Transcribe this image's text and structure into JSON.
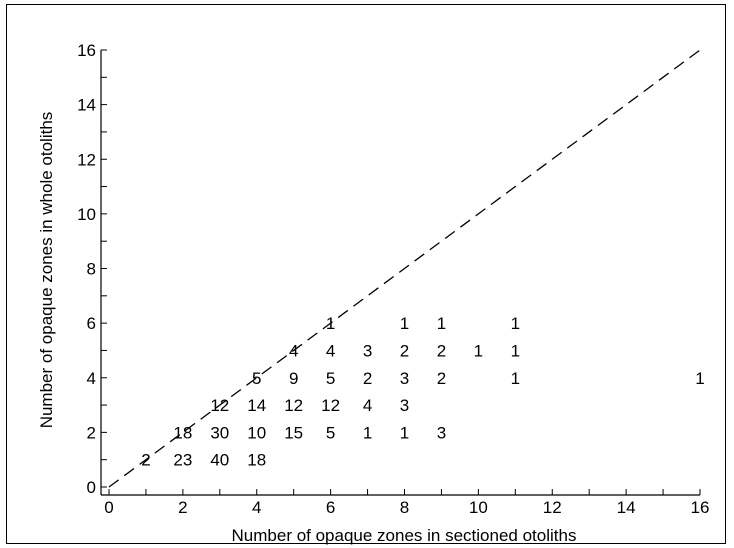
{
  "chart_data": {
    "type": "scatter",
    "title": "",
    "xlabel": "Number of opaque zones in sectioned otoliths",
    "ylabel": "Number of opaque zones in whole otoliths",
    "xlim": [
      0,
      16
    ],
    "ylim": [
      0,
      16
    ],
    "x_tick_labels": [
      "0",
      "2",
      "4",
      "6",
      "8",
      "10",
      "12",
      "14",
      "16"
    ],
    "y_tick_labels": [
      "0",
      "2",
      "4",
      "6",
      "8",
      "10",
      "12",
      "14",
      "16"
    ],
    "reference_line": {
      "style": "dashed",
      "from": [
        0,
        0
      ],
      "to": [
        16,
        16
      ]
    },
    "grid": false,
    "points": [
      {
        "x": 1,
        "y": 1,
        "count": 2
      },
      {
        "x": 2,
        "y": 1,
        "count": 23
      },
      {
        "x": 3,
        "y": 1,
        "count": 40
      },
      {
        "x": 4,
        "y": 1,
        "count": 18
      },
      {
        "x": 2,
        "y": 2,
        "count": 18
      },
      {
        "x": 3,
        "y": 2,
        "count": 30
      },
      {
        "x": 4,
        "y": 2,
        "count": 10
      },
      {
        "x": 5,
        "y": 2,
        "count": 15
      },
      {
        "x": 6,
        "y": 2,
        "count": 5
      },
      {
        "x": 7,
        "y": 2,
        "count": 1
      },
      {
        "x": 8,
        "y": 2,
        "count": 1
      },
      {
        "x": 9,
        "y": 2,
        "count": 3
      },
      {
        "x": 3,
        "y": 3,
        "count": 12
      },
      {
        "x": 4,
        "y": 3,
        "count": 14
      },
      {
        "x": 5,
        "y": 3,
        "count": 12
      },
      {
        "x": 6,
        "y": 3,
        "count": 12
      },
      {
        "x": 7,
        "y": 3,
        "count": 4
      },
      {
        "x": 8,
        "y": 3,
        "count": 3
      },
      {
        "x": 4,
        "y": 4,
        "count": 5
      },
      {
        "x": 5,
        "y": 4,
        "count": 9
      },
      {
        "x": 6,
        "y": 4,
        "count": 5
      },
      {
        "x": 7,
        "y": 4,
        "count": 2
      },
      {
        "x": 8,
        "y": 4,
        "count": 3
      },
      {
        "x": 9,
        "y": 4,
        "count": 2
      },
      {
        "x": 11,
        "y": 4,
        "count": 1
      },
      {
        "x": 16,
        "y": 4,
        "count": 1
      },
      {
        "x": 5,
        "y": 5,
        "count": 4
      },
      {
        "x": 6,
        "y": 5,
        "count": 4
      },
      {
        "x": 7,
        "y": 5,
        "count": 3
      },
      {
        "x": 8,
        "y": 5,
        "count": 2
      },
      {
        "x": 9,
        "y": 5,
        "count": 2
      },
      {
        "x": 10,
        "y": 5,
        "count": 1
      },
      {
        "x": 11,
        "y": 5,
        "count": 1
      },
      {
        "x": 6,
        "y": 6,
        "count": 1
      },
      {
        "x": 8,
        "y": 6,
        "count": 1
      },
      {
        "x": 9,
        "y": 6,
        "count": 1
      },
      {
        "x": 11,
        "y": 6,
        "count": 1
      }
    ]
  }
}
